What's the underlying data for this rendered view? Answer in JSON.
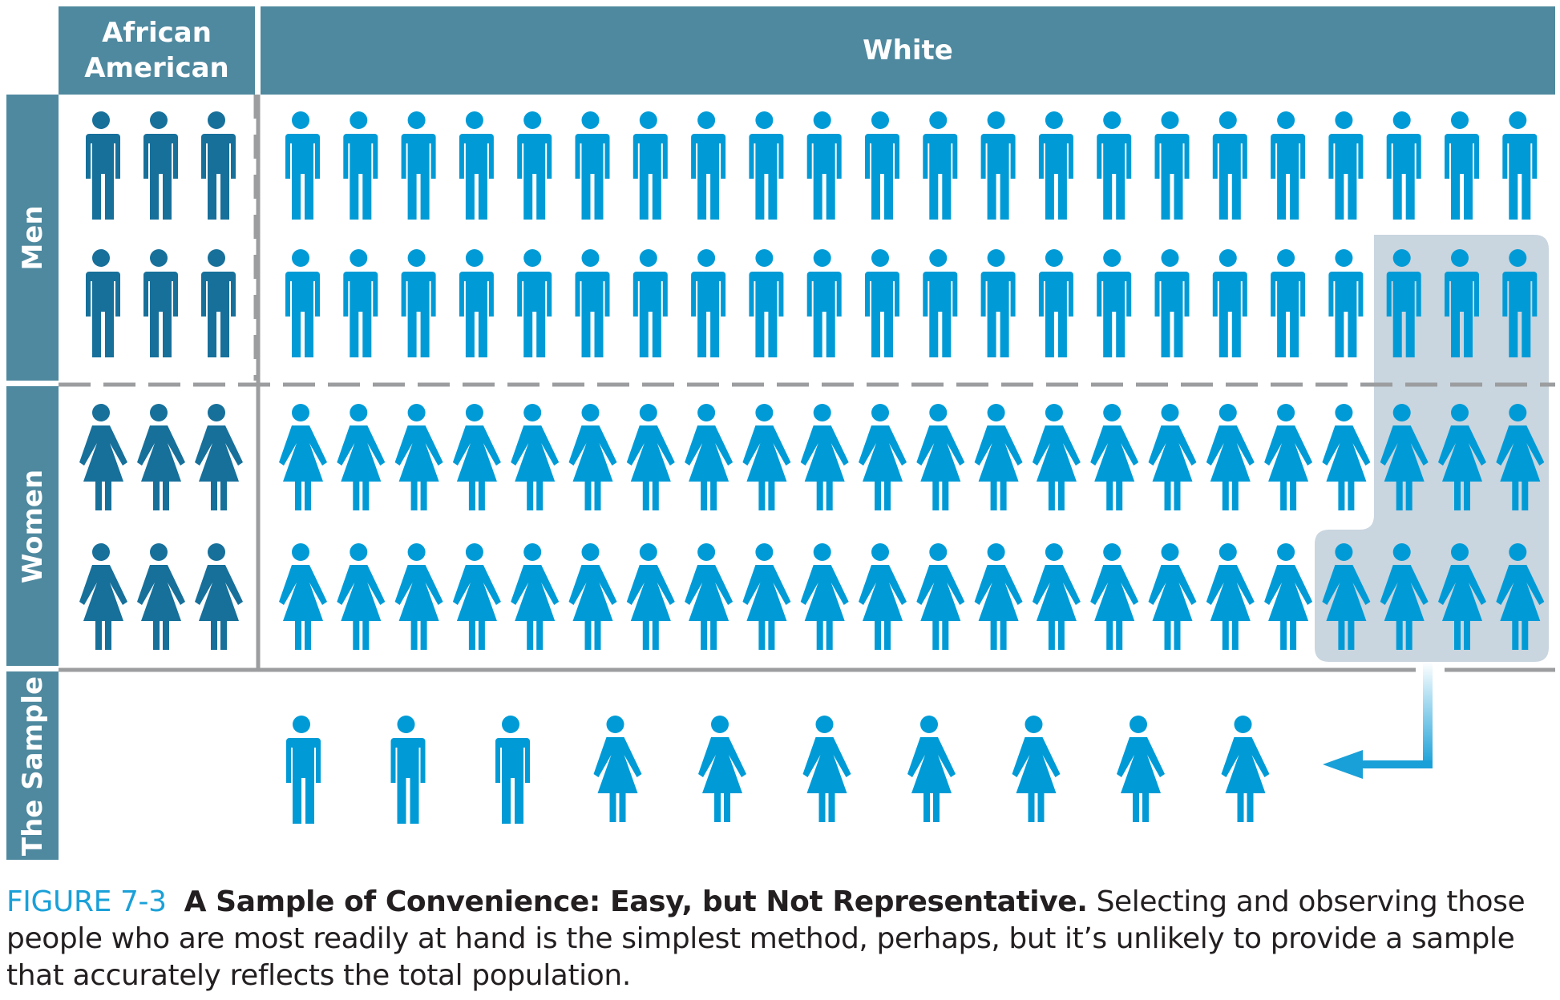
{
  "headers": {
    "col_african_american": "African\nAmerican",
    "col_white": "White",
    "row_men": "Men",
    "row_women": "Women",
    "row_sample": "The Sample"
  },
  "population": {
    "african_american_per_row": 3,
    "white_per_row": 22,
    "rows": [
      "man",
      "man",
      "woman",
      "woman"
    ]
  },
  "selected_group": [
    {
      "row": 2,
      "count": 3
    },
    {
      "row": 3,
      "count": 3
    },
    {
      "row": 4,
      "count": 4
    }
  ],
  "sample": [
    "man",
    "man",
    "man",
    "woman",
    "woman",
    "woman",
    "woman",
    "woman",
    "woman",
    "woman"
  ],
  "colors": {
    "header": "#4f899f",
    "african_american_figure": "#17709a",
    "white_figure": "#009bd6",
    "selection_box": "#c9d5df",
    "divider": "#9b9d9f",
    "arrow": "#1aa0d8"
  },
  "caption": {
    "figure_number": "FIGURE 7-3",
    "title": "A Sample of Convenience: Easy, but Not Representative.",
    "text": "Selecting and observing those people who are most readily at hand is the simplest method, perhaps, but it’s unlikely to provide a sample that accurately reflects the total population."
  }
}
